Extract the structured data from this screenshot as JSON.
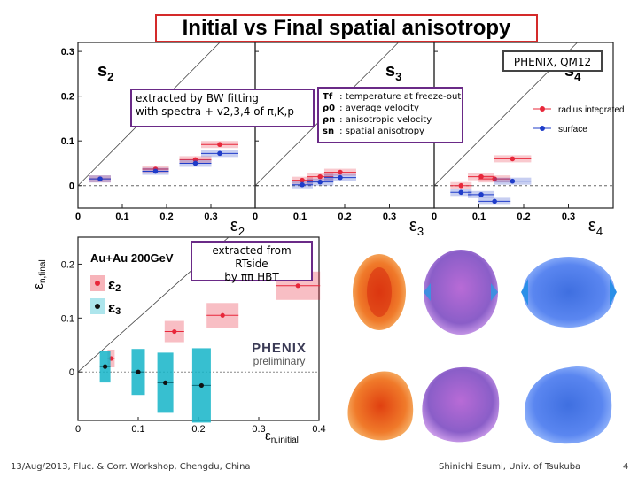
{
  "slide": {
    "title": "Initial vs Final spatial anisotropy",
    "experiment_tag": "PHENIX, QM12",
    "note_bw": [
      "extracted by BW fitting",
      "with spectra + v2,3,4 of π,K,p"
    ],
    "note_hbt": [
      "extracted from RTside",
      "by ππ HBT"
    ],
    "footer_left": "13/Aug/2013, Fluc. & Corr. Workshop, Chengdu, China",
    "footer_center": "Shinichi Esumi, Univ. of Tsukuba",
    "page_number": "4",
    "legend_box": [
      {
        "symbol": "Tf",
        "text": ": temperature at freeze-out"
      },
      {
        "symbol": "ρ0",
        "text": ": average velocity"
      },
      {
        "symbol": "ρn",
        "text": ": anisotropic velocity"
      },
      {
        "symbol": "sn",
        "text": ": spatial anisotropy"
      }
    ],
    "logo_text": "PHENIX",
    "logo_sub": "preliminary",
    "colors": {
      "red": "#e8273a",
      "blue": "#1f3cc9",
      "cyan": "#14b4c8",
      "purple": "#6a2a87",
      "title_border": "#d42a2a"
    }
  },
  "chart_data": [
    {
      "type": "scatter",
      "title": "s2",
      "xlabel": "ε2",
      "ylabel": "",
      "xlim": [
        0,
        0.4
      ],
      "ylim": [
        -0.05,
        0.32
      ],
      "xticks": [
        "0",
        "0.1",
        "0.2",
        "0.3"
      ],
      "yticks": [
        "0",
        "0.1",
        "0.2",
        "0.3"
      ],
      "legend": [
        "radius integrated",
        "surface"
      ],
      "series": [
        {
          "name": "radius integrated",
          "color": "#e8273a",
          "x": [
            0.05,
            0.175,
            0.265,
            0.32
          ],
          "y": [
            0.015,
            0.037,
            0.058,
            0.092
          ]
        },
        {
          "name": "surface",
          "color": "#1f3cc9",
          "x": [
            0.05,
            0.175,
            0.265,
            0.32
          ],
          "y": [
            0.015,
            0.032,
            0.05,
            0.072
          ]
        }
      ]
    },
    {
      "type": "scatter",
      "title": "s3",
      "xlabel": "ε3",
      "xlim": [
        0,
        0.4
      ],
      "ylim": [
        -0.05,
        0.32
      ],
      "xticks": [
        "0",
        "0.1",
        "0.2",
        "0.3"
      ],
      "series": [
        {
          "name": "radius integrated",
          "color": "#e8273a",
          "x": [
            0.105,
            0.145,
            0.19
          ],
          "y": [
            0.012,
            0.02,
            0.03
          ]
        },
        {
          "name": "surface",
          "color": "#1f3cc9",
          "x": [
            0.105,
            0.145,
            0.19
          ],
          "y": [
            0.002,
            0.008,
            0.018
          ]
        }
      ]
    },
    {
      "type": "scatter",
      "title": "s4",
      "xlabel": "ε4",
      "xlim": [
        0,
        0.4
      ],
      "ylim": [
        -0.05,
        0.32
      ],
      "xticks": [
        "0",
        "0.1",
        "0.2",
        "0.3"
      ],
      "legend": [
        "radius integrated",
        "surface"
      ],
      "series": [
        {
          "name": "radius integrated",
          "color": "#e8273a",
          "x": [
            0.06,
            0.105,
            0.135,
            0.175
          ],
          "y": [
            0.0,
            0.02,
            0.015,
            0.06
          ]
        },
        {
          "name": "surface",
          "color": "#1f3cc9",
          "x": [
            0.06,
            0.105,
            0.135,
            0.175
          ],
          "y": [
            -0.015,
            -0.02,
            -0.035,
            0.01
          ]
        }
      ]
    },
    {
      "type": "scatter",
      "title": "Au+Au 200GeV",
      "xlabel": "εn,initial",
      "ylabel": "εn,final",
      "xlim": [
        0,
        0.4
      ],
      "ylim": [
        -0.09,
        0.25
      ],
      "xticks": [
        "0",
        "0.1",
        "0.2",
        "0.3",
        "0.4"
      ],
      "yticks": [
        "0",
        "0.1",
        "0.2"
      ],
      "legend": [
        "ε2",
        "ε3"
      ],
      "series": [
        {
          "name": "ε2",
          "color": "#e8273a",
          "x": [
            0.055,
            0.16,
            0.24,
            0.365
          ],
          "y": [
            0.025,
            0.075,
            0.105,
            0.16
          ]
        },
        {
          "name": "ε3",
          "color": "#14b4c8",
          "x": [
            0.045,
            0.1,
            0.145,
            0.205
          ],
          "y": [
            0.01,
            0.0,
            -0.02,
            -0.025
          ]
        }
      ]
    }
  ]
}
